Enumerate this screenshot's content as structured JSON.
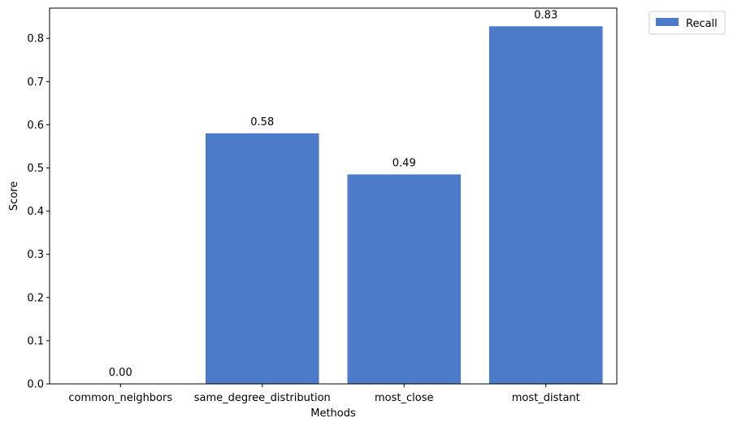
{
  "chart_data": {
    "type": "bar",
    "title": "",
    "xlabel": "Methods",
    "ylabel": "Score",
    "ylim": [
      0,
      0.87
    ],
    "yticks": [
      0.0,
      0.1,
      0.2,
      0.3,
      0.4,
      0.5,
      0.6,
      0.7,
      0.8
    ],
    "ytick_labels": [
      "0.0",
      "0.1",
      "0.2",
      "0.3",
      "0.4",
      "0.5",
      "0.6",
      "0.7",
      "0.8"
    ],
    "categories": [
      "common_neighbors",
      "same_degree_distribution",
      "most_close",
      "most_distant"
    ],
    "series": [
      {
        "name": "Recall",
        "color": "#4e7bc9",
        "values": [
          0.0,
          0.58,
          0.485,
          0.828
        ],
        "labels": [
          "0.00",
          "0.58",
          "0.49",
          "0.83"
        ]
      }
    ],
    "legend": {
      "position": "outside-top-right"
    },
    "grid": false
  }
}
